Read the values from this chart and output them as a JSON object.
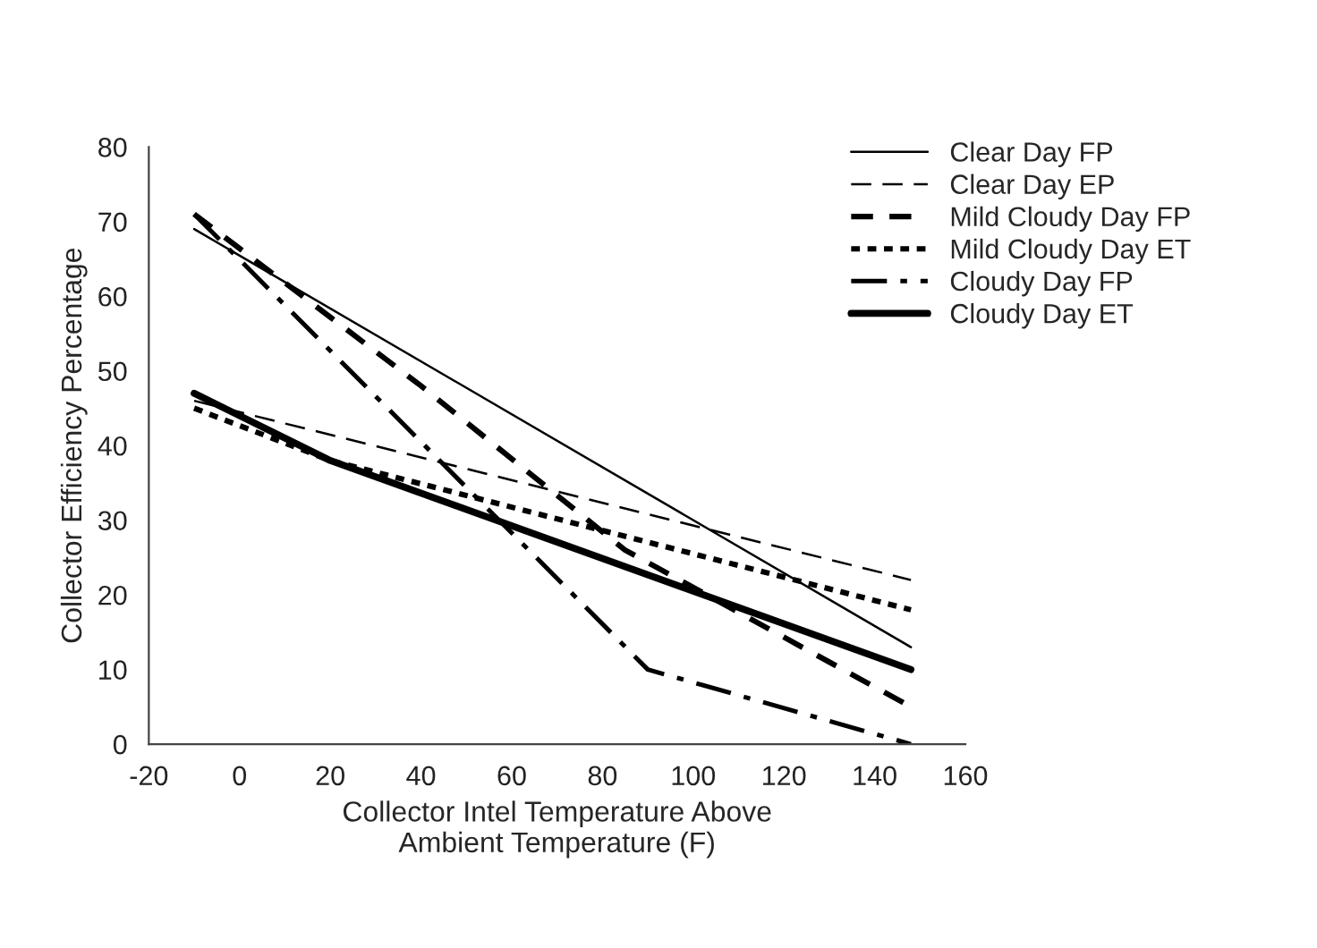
{
  "chart_data": {
    "type": "line",
    "xlabel": "Collector Intel Temperature Above\nAmbient Temperature (F)",
    "ylabel": "Collector Efficiency Percentage",
    "xlim": [
      -20,
      160
    ],
    "xticks": [
      -20,
      0,
      20,
      40,
      60,
      80,
      100,
      120,
      140,
      160
    ],
    "ylim": [
      0,
      80
    ],
    "yticks": [
      0,
      10,
      20,
      30,
      40,
      50,
      60,
      70,
      80
    ],
    "grid": false,
    "legend": "top right",
    "marker": "none",
    "series": [
      {
        "name": "Clear Day FP",
        "color": "#000000",
        "line_style": "solid",
        "x": [
          -10,
          148
        ],
        "values": [
          69,
          13
        ]
      },
      {
        "name": "Clear Day EP",
        "color": "#000000",
        "line_style": "longdash",
        "x": [
          -10,
          148
        ],
        "values": [
          46,
          22
        ]
      },
      {
        "name": "Mild Cloudy Day FP",
        "color": "#000000",
        "line_style": "dashed",
        "x": [
          -10,
          40,
          85,
          148
        ],
        "values": [
          71,
          48,
          26,
          5
        ]
      },
      {
        "name": "Mild Cloudy Day ET",
        "color": "#000000",
        "line_style": "dotted",
        "x": [
          -10,
          20,
          148
        ],
        "values": [
          45,
          38,
          18
        ]
      },
      {
        "name": "Cloudy Day FP",
        "color": "#000000",
        "line_style": "dashdot",
        "x": [
          -10,
          90,
          148
        ],
        "values": [
          71,
          10,
          0
        ]
      },
      {
        "name": "Cloudy Day ET",
        "color": "#000000",
        "line_style": "solid",
        "x": [
          -10,
          20,
          148
        ],
        "values": [
          47,
          38,
          10
        ]
      }
    ]
  }
}
